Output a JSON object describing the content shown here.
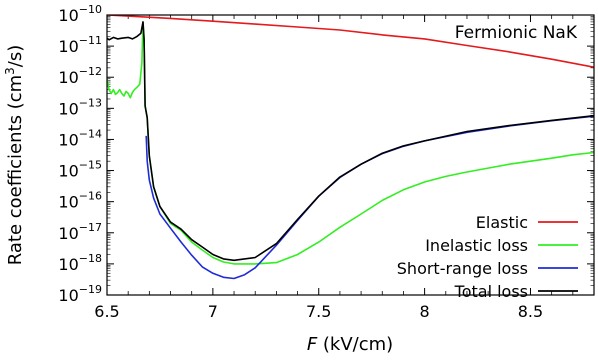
{
  "chart_data": {
    "type": "line",
    "annotation": "Fermionic NaK",
    "xlabel": {
      "var": "F",
      "unit": " (kV/cm)"
    },
    "ylabel": {
      "main": "Rate coefficients (cm",
      "sup": "3",
      "tail": "/s)"
    },
    "xlim": [
      6.5,
      8.8
    ],
    "ylim": [
      1e-19,
      1e-10
    ],
    "yscale": "log",
    "x_ticks": [
      6.5,
      7,
      7.5,
      8,
      8.5
    ],
    "x_tick_labels": [
      "6.5",
      "7",
      "7.5",
      "8",
      "8.5"
    ],
    "y_tick_exponents": [
      -10,
      -11,
      -12,
      -13,
      -14,
      -15,
      -16,
      -17,
      -18,
      -19
    ],
    "y_tick_base": "10",
    "legend_position": "lower-right",
    "series": [
      {
        "name": "Elastic",
        "color": "#e41a1c",
        "points": [
          [
            6.5,
            1e-10
          ],
          [
            6.6,
            9.2e-11
          ],
          [
            6.8,
            7.8e-11
          ],
          [
            7.0,
            6.3e-11
          ],
          [
            7.2,
            5.1e-11
          ],
          [
            7.4,
            4.1e-11
          ],
          [
            7.6,
            3.3e-11
          ],
          [
            7.8,
            2.3e-11
          ],
          [
            8.0,
            1.7e-11
          ],
          [
            8.2,
            1.05e-11
          ],
          [
            8.4,
            6.5e-12
          ],
          [
            8.6,
            3.8e-12
          ],
          [
            8.8,
            2.1e-12
          ]
        ]
      },
      {
        "name": "Inelastic loss",
        "color": "#33ee22",
        "points": [
          [
            6.5,
            9e-13
          ],
          [
            6.51,
            4e-13
          ],
          [
            6.52,
            3e-13
          ],
          [
            6.53,
            4e-13
          ],
          [
            6.54,
            2.8e-13
          ],
          [
            6.55,
            3.2e-13
          ],
          [
            6.56,
            4e-13
          ],
          [
            6.57,
            3e-13
          ],
          [
            6.58,
            2.5e-13
          ],
          [
            6.59,
            3.5e-13
          ],
          [
            6.6,
            3e-13
          ],
          [
            6.61,
            2.2e-13
          ],
          [
            6.62,
            3.2e-13
          ],
          [
            6.63,
            4e-13
          ],
          [
            6.645,
            5e-13
          ],
          [
            6.655,
            6e-13
          ],
          [
            6.665,
            3e-12
          ],
          [
            6.67,
            6e-11
          ],
          [
            6.675,
            1.6e-11
          ],
          [
            6.68,
            1.2e-13
          ],
          [
            6.69,
            5e-14
          ],
          [
            6.7,
            3e-15
          ],
          [
            6.72,
            3e-16
          ],
          [
            6.75,
            7e-17
          ],
          [
            6.8,
            2e-17
          ],
          [
            6.85,
            1.2e-17
          ],
          [
            6.9,
            5e-18
          ],
          [
            6.95,
            2.8e-18
          ],
          [
            7.0,
            1.6e-18
          ],
          [
            7.05,
            1.15e-18
          ],
          [
            7.1,
            1e-18
          ],
          [
            7.2,
            1e-18
          ],
          [
            7.3,
            1.1e-18
          ],
          [
            7.4,
            2e-18
          ],
          [
            7.5,
            5e-18
          ],
          [
            7.6,
            1.5e-17
          ],
          [
            7.7,
            4e-17
          ],
          [
            7.8,
            1.1e-16
          ],
          [
            7.9,
            2.4e-16
          ],
          [
            8.0,
            4.3e-16
          ],
          [
            8.1,
            6.5e-16
          ],
          [
            8.2,
            9e-16
          ],
          [
            8.3,
            1.2e-15
          ],
          [
            8.4,
            1.6e-15
          ],
          [
            8.5,
            2e-15
          ],
          [
            8.6,
            2.5e-15
          ],
          [
            8.7,
            3.2e-15
          ],
          [
            8.8,
            3.8e-15
          ]
        ]
      },
      {
        "name": "Short-range loss",
        "color": "#1f2bd8",
        "points": [
          [
            6.685,
            1.3e-14
          ],
          [
            6.69,
            2e-15
          ],
          [
            6.7,
            5e-16
          ],
          [
            6.72,
            1.3e-16
          ],
          [
            6.75,
            4e-17
          ],
          [
            6.8,
            1.4e-17
          ],
          [
            6.85,
            5e-18
          ],
          [
            6.9,
            1.9e-18
          ],
          [
            6.95,
            8e-19
          ],
          [
            7.0,
            5e-19
          ],
          [
            7.05,
            3.7e-19
          ],
          [
            7.1,
            3.4e-19
          ],
          [
            7.15,
            4.5e-19
          ],
          [
            7.2,
            7.5e-19
          ],
          [
            7.3,
            4e-18
          ],
          [
            7.4,
            2.5e-17
          ],
          [
            7.5,
            1.5e-16
          ],
          [
            7.6,
            6e-16
          ],
          [
            7.7,
            1.6e-15
          ],
          [
            7.8,
            3.5e-15
          ],
          [
            7.9,
            6e-15
          ],
          [
            8.0,
            9e-15
          ],
          [
            8.2,
            1.7e-14
          ],
          [
            8.4,
            2.7e-14
          ],
          [
            8.6,
            4e-14
          ],
          [
            8.8,
            5.6e-14
          ]
        ]
      },
      {
        "name": "Total loss",
        "color": "#000000",
        "points": [
          [
            6.5,
            1.8e-11
          ],
          [
            6.51,
            1.6e-11
          ],
          [
            6.53,
            1.9e-11
          ],
          [
            6.55,
            1.7e-11
          ],
          [
            6.57,
            1.8e-11
          ],
          [
            6.6,
            1.9e-11
          ],
          [
            6.62,
            1.7e-11
          ],
          [
            6.64,
            2e-11
          ],
          [
            6.66,
            2.6e-11
          ],
          [
            6.67,
            6e-11
          ],
          [
            6.675,
            1.6e-11
          ],
          [
            6.68,
            1.2e-13
          ],
          [
            6.69,
            5e-14
          ],
          [
            6.7,
            3e-15
          ],
          [
            6.72,
            3e-16
          ],
          [
            6.75,
            7e-17
          ],
          [
            6.8,
            2.2e-17
          ],
          [
            6.85,
            1.3e-17
          ],
          [
            6.9,
            6e-18
          ],
          [
            6.95,
            3.5e-18
          ],
          [
            7.0,
            2e-18
          ],
          [
            7.05,
            1.45e-18
          ],
          [
            7.1,
            1.3e-18
          ],
          [
            7.2,
            1.6e-18
          ],
          [
            7.3,
            4.5e-18
          ],
          [
            7.4,
            2.7e-17
          ],
          [
            7.5,
            1.5e-16
          ],
          [
            7.6,
            6.2e-16
          ],
          [
            7.7,
            1.6e-15
          ],
          [
            7.8,
            3.6e-15
          ],
          [
            7.9,
            6.2e-15
          ],
          [
            8.0,
            9e-15
          ],
          [
            8.2,
            1.8e-14
          ],
          [
            8.4,
            2.8e-14
          ],
          [
            8.6,
            4.1e-14
          ],
          [
            8.8,
            5.8e-14
          ]
        ]
      }
    ]
  }
}
